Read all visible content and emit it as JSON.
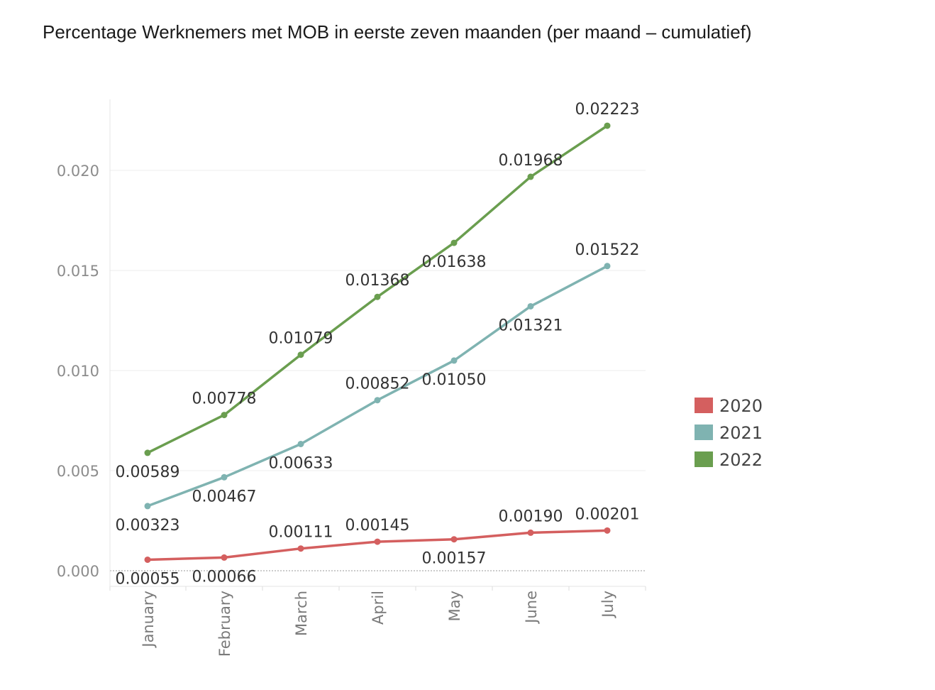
{
  "title": "Percentage Werknemers met MOB in eerste zeven maanden (per maand –  cumulatief)",
  "chart_data": {
    "type": "line",
    "categories": [
      "January",
      "February",
      "March",
      "April",
      "May",
      "June",
      "July"
    ],
    "ylim": [
      0,
      0.0235
    ],
    "yticks": [
      "0.000",
      "0.005",
      "0.010",
      "0.015",
      "0.020"
    ],
    "ytick_values": [
      0,
      0.005,
      0.01,
      0.015,
      0.02
    ],
    "grid": true,
    "legend_position": "right",
    "series": [
      {
        "name": "2020",
        "color": "#d45f5f",
        "values": [
          0.00055,
          0.00066,
          0.00111,
          0.00145,
          0.00157,
          0.0019,
          0.00201
        ],
        "labels": [
          "0.00055",
          "0.00066",
          "0.00111",
          "0.00145",
          "0.00157",
          "0.00190",
          "0.00201"
        ],
        "label_side": [
          "below",
          "below",
          "above",
          "above",
          "below",
          "above",
          "above"
        ]
      },
      {
        "name": "2021",
        "color": "#7fb3b1",
        "values": [
          0.00323,
          0.00467,
          0.00633,
          0.00852,
          0.0105,
          0.01321,
          0.01522
        ],
        "labels": [
          "0.00323",
          "0.00467",
          "0.00633",
          "0.00852",
          "0.01050",
          "0.01321",
          "0.01522"
        ],
        "label_side": [
          "below",
          "below",
          "below",
          "above",
          "below",
          "below",
          "above"
        ]
      },
      {
        "name": "2022",
        "color": "#6a9e4f",
        "values": [
          0.00589,
          0.00778,
          0.01079,
          0.01368,
          0.01638,
          0.01968,
          0.02223
        ],
        "labels": [
          "0.00589",
          "0.00778",
          "0.01079",
          "0.01368",
          "0.01638",
          "0.01968",
          "0.02223"
        ],
        "label_side": [
          "below",
          "above",
          "above",
          "above",
          "below",
          "above",
          "above"
        ]
      }
    ]
  }
}
